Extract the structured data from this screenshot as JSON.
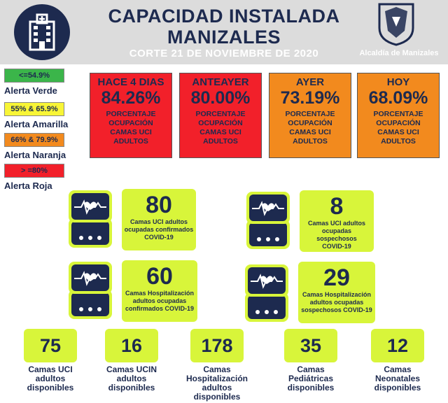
{
  "header": {
    "title_line1": "CAPACIDAD INSTALADA",
    "title_line2": "MANIZALES",
    "date": "CORTE 21  DE NOVIEMBRE DE 2020",
    "logo_text": "Alcaldía de Manizales",
    "hospital_icon": "hospital-building-icon",
    "bg_color": "#dcdcdc",
    "navy": "#1d2a4f"
  },
  "legend": [
    {
      "range": "<=54.9%",
      "label": "Alerta Verde",
      "color": "#3bb54a"
    },
    {
      "range": "55% & 65.9%",
      "label": "Alerta Amarilla",
      "color": "#f8f536"
    },
    {
      "range": "66% & 79.9%",
      "label": "Alerta Naranja",
      "color": "#f28a1e"
    },
    {
      "range": "> =80%",
      "label": "Alerta Roja",
      "color": "#f2202a"
    }
  ],
  "occupancy": [
    {
      "head": "HACE 4 DIAS",
      "value": "84.26%",
      "desc": [
        "PORCENTAJE",
        "OCUPACIÓN",
        "CAMAS UCI",
        "ADULTOS"
      ],
      "color": "#f2202a"
    },
    {
      "head": "ANTEAYER",
      "value": "80.00%",
      "desc": [
        "PORCENTAJE",
        "OCUPACIÓN",
        "CAMAS UCI",
        "ADULTOS"
      ],
      "color": "#f2202a"
    },
    {
      "head": "AYER",
      "value": "73.19%",
      "desc": [
        "PORCENTAJE",
        "OCUPACIÓN",
        "CAMAS UCI",
        "ADULTOS"
      ],
      "color": "#f28a1e"
    },
    {
      "head": "HOY",
      "value": "68.09%",
      "desc": [
        "PORCENTAJE",
        "OCUPACIÓN",
        "CAMAS UCI",
        "ADULTOS"
      ],
      "color": "#f28a1e"
    }
  ],
  "stats": [
    {
      "num": "80",
      "desc": [
        "Camas UCI adultos",
        "ocupadas confirmados",
        "COVID-19"
      ],
      "icon": "heart-monitor-icon"
    },
    {
      "num": "8",
      "desc": [
        "Camas UCI adultos",
        "ocupadas sospechosos",
        "COVID-19"
      ],
      "icon": "heart-monitor-icon"
    },
    {
      "num": "60",
      "desc": [
        "Camas  Hospitalización",
        "adultos ocupadas",
        "confirmados COVID-19"
      ],
      "icon": "heart-monitor-icon"
    },
    {
      "num": "29",
      "desc": [
        "Camas  Hospitalización",
        "adultos ocupadas",
        "sospechosos COVID-19"
      ],
      "icon": "heart-monitor-icon"
    }
  ],
  "available": [
    {
      "num": "75",
      "label": [
        "Camas UCI",
        "adultos",
        "disponibles"
      ]
    },
    {
      "num": "16",
      "label": [
        "Camas UCIN",
        "adultos",
        "disponibles"
      ]
    },
    {
      "num": "178",
      "label": [
        "Camas",
        "Hospitalización",
        "adultos",
        "disponibles"
      ]
    },
    {
      "num": "35",
      "label": [
        "Camas",
        "Pediátricas",
        "disponibles"
      ]
    },
    {
      "num": "12",
      "label": [
        "Camas",
        "Neonatales",
        "disponibles"
      ]
    }
  ],
  "accent": "#d8f53a"
}
